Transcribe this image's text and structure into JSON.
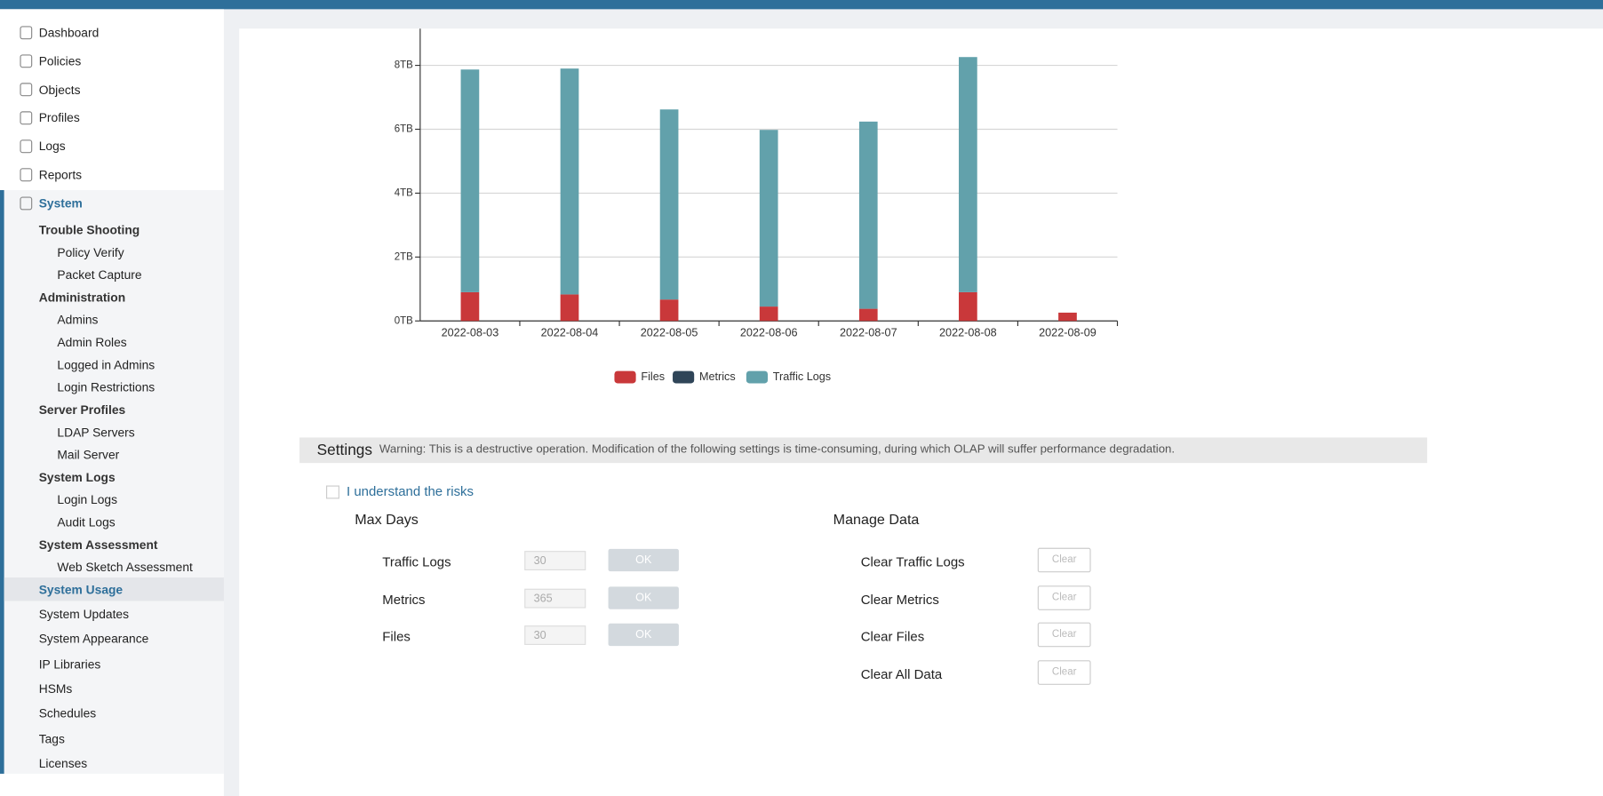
{
  "nav": [
    "Dashboard",
    "Policies",
    "Objects",
    "Profiles",
    "Logs",
    "Reports"
  ],
  "system": {
    "label": "System",
    "groups": [
      {
        "title": "Trouble Shooting",
        "items": [
          "Policy Verify",
          "Packet Capture"
        ]
      },
      {
        "title": "Administration",
        "items": [
          "Admins",
          "Admin Roles",
          "Logged in Admins",
          "Login Restrictions"
        ]
      },
      {
        "title": "Server Profiles",
        "items": [
          "LDAP Servers",
          "Mail Server"
        ]
      },
      {
        "title": "System Logs",
        "items": [
          "Login Logs",
          "Audit Logs"
        ]
      },
      {
        "title": "System Assessment",
        "items": [
          "Web Sketch Assessment"
        ]
      }
    ],
    "active": "System Usage",
    "items": [
      "System Updates",
      "System Appearance",
      "IP Libraries",
      "HSMs",
      "Schedules",
      "Tags",
      "Licenses"
    ]
  },
  "chart_data": {
    "type": "stacked-bar",
    "categories": [
      "2022-08-03",
      "2022-08-04",
      "2022-08-05",
      "2022-08-06",
      "2022-08-07",
      "2022-08-08",
      "2022-08-09"
    ],
    "series": [
      {
        "name": "Files",
        "color": "#c9383a",
        "values": [
          0.9,
          0.83,
          0.67,
          0.45,
          0.38,
          0.9,
          0.26
        ]
      },
      {
        "name": "Metrics",
        "color": "#2f4558",
        "values": [
          0,
          0,
          0,
          0,
          0,
          0,
          0
        ]
      },
      {
        "name": "Traffic Logs",
        "color": "#62a1ab",
        "values": [
          6.97,
          7.07,
          5.95,
          5.53,
          5.86,
          7.36,
          0
        ]
      }
    ],
    "ylim": [
      0,
      9.15
    ],
    "yticks": [
      {
        "value": 0,
        "label": "0TB"
      },
      {
        "value": 2,
        "label": "2TB"
      },
      {
        "value": 4,
        "label": "4TB"
      },
      {
        "value": 6,
        "label": "6TB"
      },
      {
        "value": 8,
        "label": "8TB"
      }
    ],
    "grid": true,
    "legend": "bottom"
  },
  "settings": {
    "title": "Settings",
    "warning": "Warning: This is a destructive operation. Modification of the following settings is time-consuming, during which OLAP will suffer performance degradation.",
    "risk_label": "I understand the risks",
    "max_days": {
      "title": "Max Days",
      "rows": [
        {
          "label": "Traffic Logs",
          "value": 30,
          "button": "OK"
        },
        {
          "label": "Metrics",
          "value": 365,
          "button": "OK"
        },
        {
          "label": "Files",
          "value": 30,
          "button": "OK"
        }
      ]
    },
    "manage_data": {
      "title": "Manage Data",
      "rows": [
        {
          "label": "Clear Traffic Logs",
          "button": "Clear"
        },
        {
          "label": "Clear Metrics",
          "button": "Clear"
        },
        {
          "label": "Clear Files",
          "button": "Clear"
        },
        {
          "label": "Clear All Data",
          "button": "Clear"
        }
      ]
    }
  }
}
